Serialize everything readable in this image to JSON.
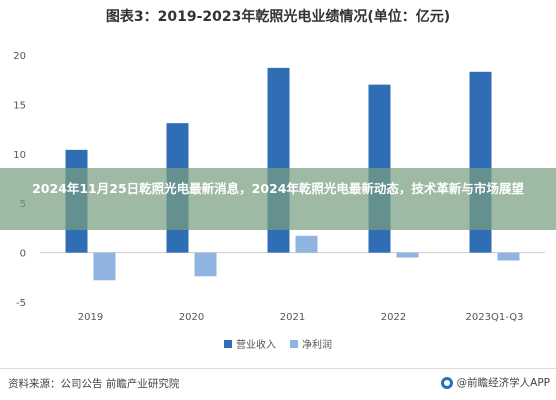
{
  "header": {
    "title": "图表3：2019-2023年乾照光电业绩情况(单位：亿元)"
  },
  "banner": {
    "text": "2024年11月25日乾照光电最新消息，2024年乾照光电最新动态，技术革新与市场展望"
  },
  "chart_data": {
    "type": "bar",
    "title": "图表3：2019-2023年乾照光电业绩情况(单位：亿元)",
    "categories": [
      "2019",
      "2020",
      "2021",
      "2022",
      "2023Q1-Q3"
    ],
    "series": [
      {
        "name": "营业收入",
        "values": [
          10.4,
          13.1,
          18.7,
          17.0,
          18.3
        ],
        "color": "#2f6db5"
      },
      {
        "name": "净利润",
        "values": [
          -2.8,
          -2.4,
          1.7,
          -0.5,
          -0.8
        ],
        "color": "#8fb4e0"
      }
    ],
    "yticks": [
      "20",
      "15",
      "10",
      "5",
      "0",
      "-5"
    ],
    "ylim": [
      -5,
      20
    ],
    "xlabel": "",
    "ylabel": "",
    "grid": false,
    "legend_position": "bottom"
  },
  "legend": {
    "items": [
      {
        "label": "营业收入",
        "color": "#2f6db5"
      },
      {
        "label": "净利润",
        "color": "#8fb4e0"
      }
    ]
  },
  "footer": {
    "source": "资料来源：公司公告 前瞻产业研究院",
    "brand": "@前瞻经济学人APP"
  }
}
